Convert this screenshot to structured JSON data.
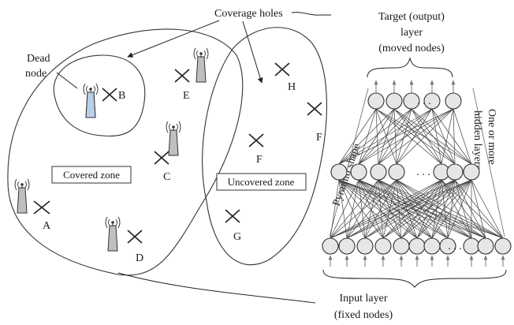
{
  "labels": {
    "coverage_holes": "Coverage holes",
    "dead_node_1": "Dead",
    "dead_node_2": "node",
    "covered_zone": "Covered zone",
    "uncovered_zone": "Uncovered zone",
    "target_1": "Target (output)",
    "target_2": "layer",
    "target_3": "(moved nodes)",
    "pyramid": "Pyramid shape",
    "hidden_1": "One or more",
    "hidden_2": "hidden layers",
    "input_1": "Input layer",
    "input_2": "(fixed nodes)",
    "ellipsis": ". . ."
  },
  "nodes": {
    "covered": [
      "A",
      "B",
      "C",
      "D",
      "E"
    ],
    "uncovered": [
      "F",
      "F",
      "G",
      "H"
    ]
  },
  "colors": {
    "dead_node": "#b9cfe8",
    "neuron": "#e6e6e6"
  },
  "network": {
    "output_count": 5,
    "hidden_count": 7,
    "input_count": 11
  }
}
